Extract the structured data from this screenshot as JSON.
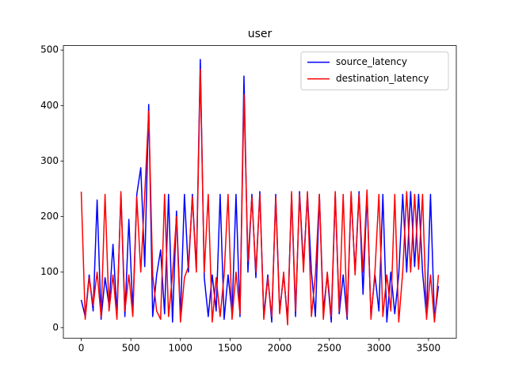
{
  "chart_data": {
    "type": "line",
    "title": "user",
    "x": [
      0,
      40,
      80,
      120,
      160,
      200,
      240,
      280,
      320,
      360,
      400,
      440,
      480,
      520,
      560,
      600,
      640,
      680,
      720,
      760,
      800,
      840,
      880,
      920,
      960,
      1000,
      1040,
      1080,
      1120,
      1160,
      1200,
      1240,
      1280,
      1320,
      1360,
      1400,
      1440,
      1480,
      1520,
      1560,
      1600,
      1640,
      1680,
      1720,
      1760,
      1800,
      1840,
      1880,
      1920,
      1960,
      2000,
      2040,
      2080,
      2120,
      2160,
      2200,
      2240,
      2280,
      2320,
      2360,
      2400,
      2440,
      2480,
      2520,
      2560,
      2600,
      2640,
      2680,
      2720,
      2760,
      2800,
      2840,
      2880,
      2920,
      2960,
      3000,
      3040,
      3080,
      3120,
      3160,
      3200,
      3240,
      3280,
      3320,
      3360,
      3400,
      3440,
      3480,
      3520,
      3560,
      3600
    ],
    "series": [
      {
        "name": "source_latency",
        "color": "#0000ff",
        "values": [
          50,
          20,
          95,
          30,
          230,
          15,
          90,
          40,
          150,
          25,
          240,
          20,
          195,
          30,
          240,
          288,
          110,
          402,
          20,
          95,
          140,
          25,
          240,
          10,
          210,
          20,
          240,
          100,
          240,
          105,
          483,
          90,
          20,
          95,
          30,
          240,
          15,
          95,
          25,
          240,
          20,
          453,
          100,
          240,
          90,
          245,
          20,
          95,
          10,
          240,
          30,
          95,
          15,
          240,
          20,
          245,
          110,
          240,
          100,
          20,
          240,
          30,
          95,
          10,
          240,
          25,
          95,
          15,
          240,
          100,
          245,
          60,
          240,
          20,
          95,
          30,
          240,
          10,
          100,
          25,
          95,
          240,
          100,
          245,
          110,
          240,
          100,
          20,
          240,
          15,
          75
        ]
      },
      {
        "name": "destination_latency",
        "color": "#ff0000",
        "values": [
          245,
          15,
          90,
          40,
          100,
          20,
          240,
          30,
          95,
          15,
          245,
          30,
          95,
          20,
          235,
          100,
          240,
          390,
          95,
          30,
          15,
          240,
          20,
          95,
          200,
          10,
          90,
          110,
          235,
          100,
          465,
          100,
          240,
          10,
          90,
          20,
          95,
          240,
          15,
          100,
          25,
          420,
          120,
          235,
          100,
          240,
          15,
          90,
          20,
          235,
          25,
          100,
          5,
          245,
          30,
          240,
          100,
          245,
          20,
          95,
          240,
          15,
          100,
          20,
          245,
          30,
          240,
          20,
          245,
          95,
          240,
          100,
          248,
          15,
          100,
          240,
          20,
          95,
          30,
          240,
          10,
          100,
          245,
          100,
          240,
          105,
          240,
          15,
          95,
          10,
          95
        ]
      }
    ],
    "xlim": [
      -180,
      3780
    ],
    "ylim": [
      -19,
      508
    ],
    "xticks": [
      0,
      500,
      1000,
      1500,
      2000,
      2500,
      3000,
      3500
    ],
    "yticks": [
      0,
      100,
      200,
      300,
      400,
      500
    ],
    "legend": "upper right"
  }
}
